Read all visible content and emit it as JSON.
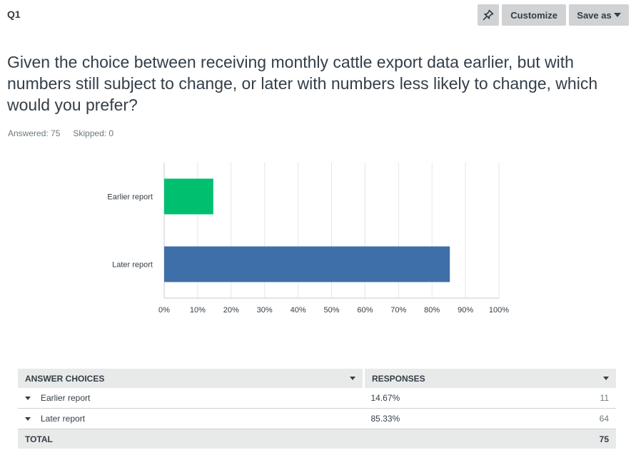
{
  "header": {
    "question_number": "Q1",
    "customize_label": "Customize",
    "save_label": "Save as",
    "pin_icon": "pin-icon"
  },
  "question": {
    "text": "Given the choice between receiving monthly cattle export data earlier, but with numbers still subject to change, or later with numbers less likely to change, which would you prefer?",
    "answered": "Answered: 75",
    "skipped": "Skipped: 0"
  },
  "chart_data": {
    "type": "bar",
    "orientation": "horizontal",
    "categories": [
      "Earlier report",
      "Later report"
    ],
    "values": [
      14.67,
      85.33
    ],
    "colors": [
      "#00bf6f",
      "#3f6fa8"
    ],
    "xlim": [
      0,
      100
    ],
    "ticks": [
      "0%",
      "10%",
      "20%",
      "30%",
      "40%",
      "50%",
      "60%",
      "70%",
      "80%",
      "90%",
      "100%"
    ],
    "grid": true
  },
  "table": {
    "headers": [
      "ANSWER CHOICES",
      "RESPONSES"
    ],
    "rows": [
      {
        "choice": "Earlier report",
        "percent": "14.67%",
        "count": "11"
      },
      {
        "choice": "Later report",
        "percent": "85.33%",
        "count": "64"
      }
    ],
    "total_label": "TOTAL",
    "total_count": "75"
  }
}
